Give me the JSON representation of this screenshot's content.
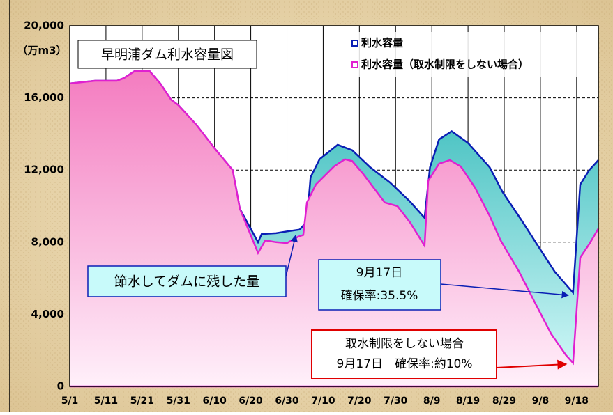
{
  "chart_data": {
    "type": "area",
    "title": "早明浦ダム利水容量図",
    "y_label": "（万m3）",
    "categories": [
      "5/1",
      "5/11",
      "5/21",
      "5/31",
      "6/10",
      "6/20",
      "6/30",
      "7/10",
      "7/20",
      "7/30",
      "8/9",
      "8/19",
      "8/29",
      "9/8",
      "9/18"
    ],
    "xlim": [
      0,
      146
    ],
    "xticks": [
      0,
      10,
      20,
      30,
      40,
      50,
      60,
      70,
      80,
      90,
      100,
      110,
      120,
      130,
      140
    ],
    "ylim": [
      0,
      20000
    ],
    "yticks": [
      0,
      {
        "value": 4000,
        "label": "4,000"
      },
      {
        "value": 8000,
        "label": "8,000"
      },
      {
        "value": 12000,
        "label": "12,000"
      },
      {
        "value": 16000,
        "label": "16,000"
      },
      {
        "value": 20000,
        "label": "20,000"
      }
    ],
    "grid": true,
    "legend": "top-right",
    "series": [
      {
        "name": "利水容量",
        "color": "#0a1eb4",
        "fill": [
          "#2fb8b8",
          "#d8fafa"
        ],
        "x": [
          0,
          7,
          13,
          15,
          18,
          22,
          25,
          28,
          30,
          35,
          40,
          45,
          47,
          52,
          53,
          57,
          60,
          63.5,
          65.5,
          66.5,
          69,
          74,
          78,
          83,
          88.5,
          94,
          98,
          99.5,
          102,
          105.5,
          110,
          116,
          119.5,
          125,
          129,
          134,
          139,
          141,
          143.5,
          146
        ],
        "values": [
          16800,
          16950,
          16950,
          17100,
          17500,
          17500,
          16800,
          15900,
          15600,
          14500,
          13200,
          12000,
          9850,
          8000,
          8450,
          8500,
          8600,
          8700,
          9150,
          11600,
          12600,
          13400,
          13100,
          12150,
          11300,
          10250,
          9350,
          12150,
          13700,
          14150,
          13500,
          12150,
          10800,
          9150,
          7900,
          6350,
          5200,
          11200,
          12000,
          12550
        ]
      },
      {
        "name": "利水容量（取水制限をしない場合）",
        "color": "#e020d0",
        "fill": [
          "#f47cc0",
          "#fff0fa"
        ],
        "x": [
          0,
          7,
          13,
          15,
          18,
          22,
          25,
          28,
          30,
          35,
          40,
          45,
          47,
          52,
          54,
          57,
          60,
          63,
          64.5,
          65.5,
          68,
          73,
          76,
          78,
          81,
          87,
          90.5,
          94,
          98,
          99,
          102,
          105,
          108,
          112,
          116,
          119,
          124,
          129,
          133,
          137,
          139,
          141,
          143.5,
          146
        ],
        "values": [
          16800,
          16950,
          16950,
          17100,
          17500,
          17500,
          16800,
          15900,
          15600,
          14500,
          13200,
          12000,
          9850,
          7400,
          8100,
          8000,
          7950,
          8300,
          8400,
          10200,
          11200,
          12200,
          12600,
          12500,
          11800,
          10200,
          10000,
          9100,
          7800,
          11400,
          12350,
          12550,
          12200,
          11000,
          9450,
          8100,
          6400,
          4450,
          2900,
          1750,
          1300,
          7150,
          7900,
          8750
        ]
      }
    ],
    "annotations": [
      {
        "lines": [
          "節水してダムに残した量"
        ]
      },
      {
        "lines": [
          "9月17日",
          "確保率:35.5%"
        ]
      },
      {
        "lines": [
          "取水制限をしない場合",
          "9月17日　確保率:約10%"
        ]
      }
    ]
  }
}
